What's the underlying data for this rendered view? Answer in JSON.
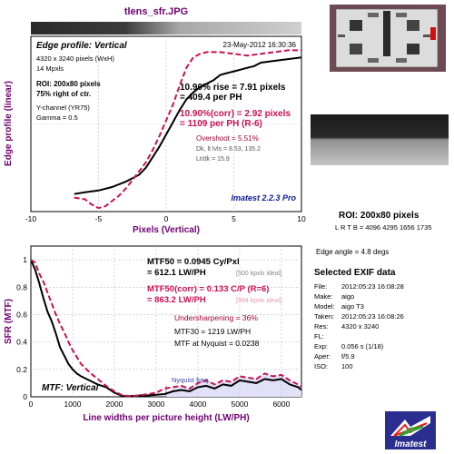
{
  "window_title": "tlens_sfr.JPG",
  "edge_plot": {
    "subtitle": "Edge profile: Vertical",
    "date": "23-May-2012 16:30:36",
    "info_lines": [
      "4320 x 3240 pixels (WxH)",
      "14 Mpxls"
    ],
    "roi_lines": [
      "ROI: 200x80 pixels",
      "75% right of ctr."
    ],
    "channel_lines": [
      "Y-channel  (YR75)",
      "Gamma = 0.5"
    ],
    "rise_lines": [
      "10.90% rise = 7.91 pixels",
      "= 409.4 per PH"
    ],
    "rise_corr_lines": [
      "10.90%(corr) = 2.92 pixels",
      "= 1109 per PH  (R-6)"
    ],
    "overshoot": "Overshoot = 5.51%",
    "dk_lines": [
      "Dk, lt lvls = 8.53, 135.2",
      "Lt/dk = 15.9"
    ],
    "brand": "Imatest 2.2.3 Pro"
  },
  "mtf_plot": {
    "subtitle": "MTF: Vertical",
    "mtf50_lines": [
      "MTF50 = 0.0945 Cy/Pxl",
      "= 612.1 LW/PH"
    ],
    "mtf50_ideal": "[500 kpxls ideal]",
    "mtf50corr_lines": [
      "MTF50(corr) = 0.133 C/P  (R=6)",
      "= 863.2 LW/PH"
    ],
    "mtf50corr_ideal": "[994 kpxls ideal]",
    "undersharpening": "Undersharpening = 36%",
    "mtf30": "MTF30 = 1219 LW/PH",
    "mtf_nyquist": "MTF at Nyquist = 0.0238",
    "nyquist_label": "Nyquist freq."
  },
  "side": {
    "roi_title": "ROI: 200x80 pixels",
    "ltrb": "L R T B = 4096 4295 1656 1735",
    "edge_angle": "Edge angle = 4.8 degs",
    "exif_title": "Selected EXIF data",
    "exif": [
      {
        "key": "File:",
        "value": "2012:05:23 16:08:28"
      },
      {
        "key": "Make:",
        "value": "aigo"
      },
      {
        "key": "Model:",
        "value": "aigo T3"
      },
      {
        "key": "Taken:",
        "value": "2012:05:23 16:08:26"
      },
      {
        "key": "Res:",
        "value": "4320 x 3240"
      },
      {
        "key": "FL:",
        "value": ""
      },
      {
        "key": "Exp:",
        "value": "0.056 s  (1/18)"
      },
      {
        "key": "Aper:",
        "value": "f/5.9"
      },
      {
        "key": "ISO:",
        "value": "100"
      }
    ],
    "logo_text": "Imatest"
  },
  "colors": {
    "axis_label": "#700070",
    "measured": "#000000",
    "corrected": "#cc1050",
    "brand_blue": "#0a1a9a",
    "nyquist_fill": "#e0e0f6",
    "nyquist_line": "#7b83d8"
  },
  "chart_data": [
    {
      "type": "line",
      "xlabel": "Pixels (Vertical)",
      "ylabel": "Edge profile (linear)",
      "xlim": [
        -10,
        10
      ],
      "xticks": [
        -10,
        -5,
        0,
        5,
        10
      ],
      "ylim": [
        0,
        1
      ],
      "grid": true,
      "series": [
        {
          "x": [
            -6.8,
            -6,
            -5,
            -4,
            -3,
            -2,
            -1.5,
            -1,
            -0.5,
            0,
            0.5,
            1,
            1.5,
            2,
            2.5,
            3,
            3.5,
            4,
            4.5,
            5,
            5.5,
            6,
            6.5,
            7,
            8,
            9,
            10
          ],
          "y": [
            0.1,
            0.11,
            0.12,
            0.14,
            0.17,
            0.21,
            0.25,
            0.31,
            0.37,
            0.44,
            0.51,
            0.58,
            0.64,
            0.68,
            0.71,
            0.73,
            0.75,
            0.78,
            0.79,
            0.8,
            0.81,
            0.82,
            0.83,
            0.85,
            0.86,
            0.87,
            0.88
          ]
        },
        {
          "x": [
            -6.8,
            -6,
            -5.5,
            -5,
            -4.5,
            -4,
            -3.5,
            -3,
            -2.5,
            -2,
            -1.5,
            -1,
            -0.5,
            0,
            0.5,
            1,
            1.5,
            2,
            2.5,
            3,
            4,
            5,
            6,
            7,
            8,
            9,
            10
          ],
          "y": [
            0.08,
            0.07,
            0.04,
            0.02,
            0.03,
            0.06,
            0.09,
            0.13,
            0.18,
            0.23,
            0.28,
            0.35,
            0.43,
            0.52,
            0.61,
            0.72,
            0.82,
            0.88,
            0.9,
            0.91,
            0.91,
            0.9,
            0.89,
            0.9,
            0.91,
            0.92,
            0.92
          ]
        }
      ]
    },
    {
      "type": "line",
      "xlabel": "Line widths per picture height (LW/PH)",
      "ylabel": "SFR (MTF)",
      "xlim": [
        0,
        6480
      ],
      "xticks": [
        0,
        1000,
        2000,
        3000,
        4000,
        5000,
        6000
      ],
      "ylim": [
        0,
        1.1
      ],
      "yticks": [
        0,
        0.2,
        0.4,
        0.6,
        0.8,
        1
      ],
      "grid": true,
      "nyquist_x": 3240,
      "series": [
        {
          "x": [
            0,
            100,
            200,
            300,
            400,
            500,
            600,
            700,
            800,
            900,
            1000,
            1100,
            1200,
            1400,
            1600,
            1800,
            2000,
            2200,
            2400,
            2600,
            2800,
            3000,
            3200,
            3400,
            3600,
            3800,
            4000,
            4200,
            4400,
            4600,
            4800,
            5000,
            5200,
            5400,
            5600,
            5800,
            6000,
            6200,
            6400,
            6480
          ],
          "y": [
            1.0,
            0.93,
            0.83,
            0.72,
            0.62,
            0.55,
            0.46,
            0.36,
            0.3,
            0.24,
            0.2,
            0.17,
            0.15,
            0.12,
            0.09,
            0.07,
            0.03,
            0.005,
            0.005,
            0.01,
            0.01,
            0.015,
            0.02,
            0.04,
            0.05,
            0.04,
            0.07,
            0.08,
            0.06,
            0.09,
            0.08,
            0.12,
            0.11,
            0.1,
            0.13,
            0.12,
            0.13,
            0.09,
            0.07,
            0.05
          ]
        },
        {
          "x": [
            0,
            100,
            200,
            300,
            400,
            500,
            600,
            700,
            800,
            900,
            1000,
            1100,
            1200,
            1400,
            1600,
            1800,
            2000,
            2200,
            2400,
            2600,
            2800,
            3000,
            3200,
            3400,
            3600,
            3800,
            4000,
            4200,
            4400,
            4600,
            4800,
            5000,
            5200,
            5400,
            5600,
            5800,
            6000,
            6200,
            6400,
            6480
          ],
          "y": [
            1.0,
            0.98,
            0.9,
            0.84,
            0.76,
            0.68,
            0.6,
            0.53,
            0.47,
            0.4,
            0.34,
            0.29,
            0.24,
            0.18,
            0.13,
            0.08,
            0.04,
            0.01,
            0.005,
            0.01,
            0.02,
            0.03,
            0.06,
            0.07,
            0.08,
            0.06,
            0.1,
            0.12,
            0.09,
            0.12,
            0.11,
            0.15,
            0.14,
            0.13,
            0.17,
            0.15,
            0.16,
            0.12,
            0.09,
            0.07
          ]
        }
      ]
    }
  ]
}
